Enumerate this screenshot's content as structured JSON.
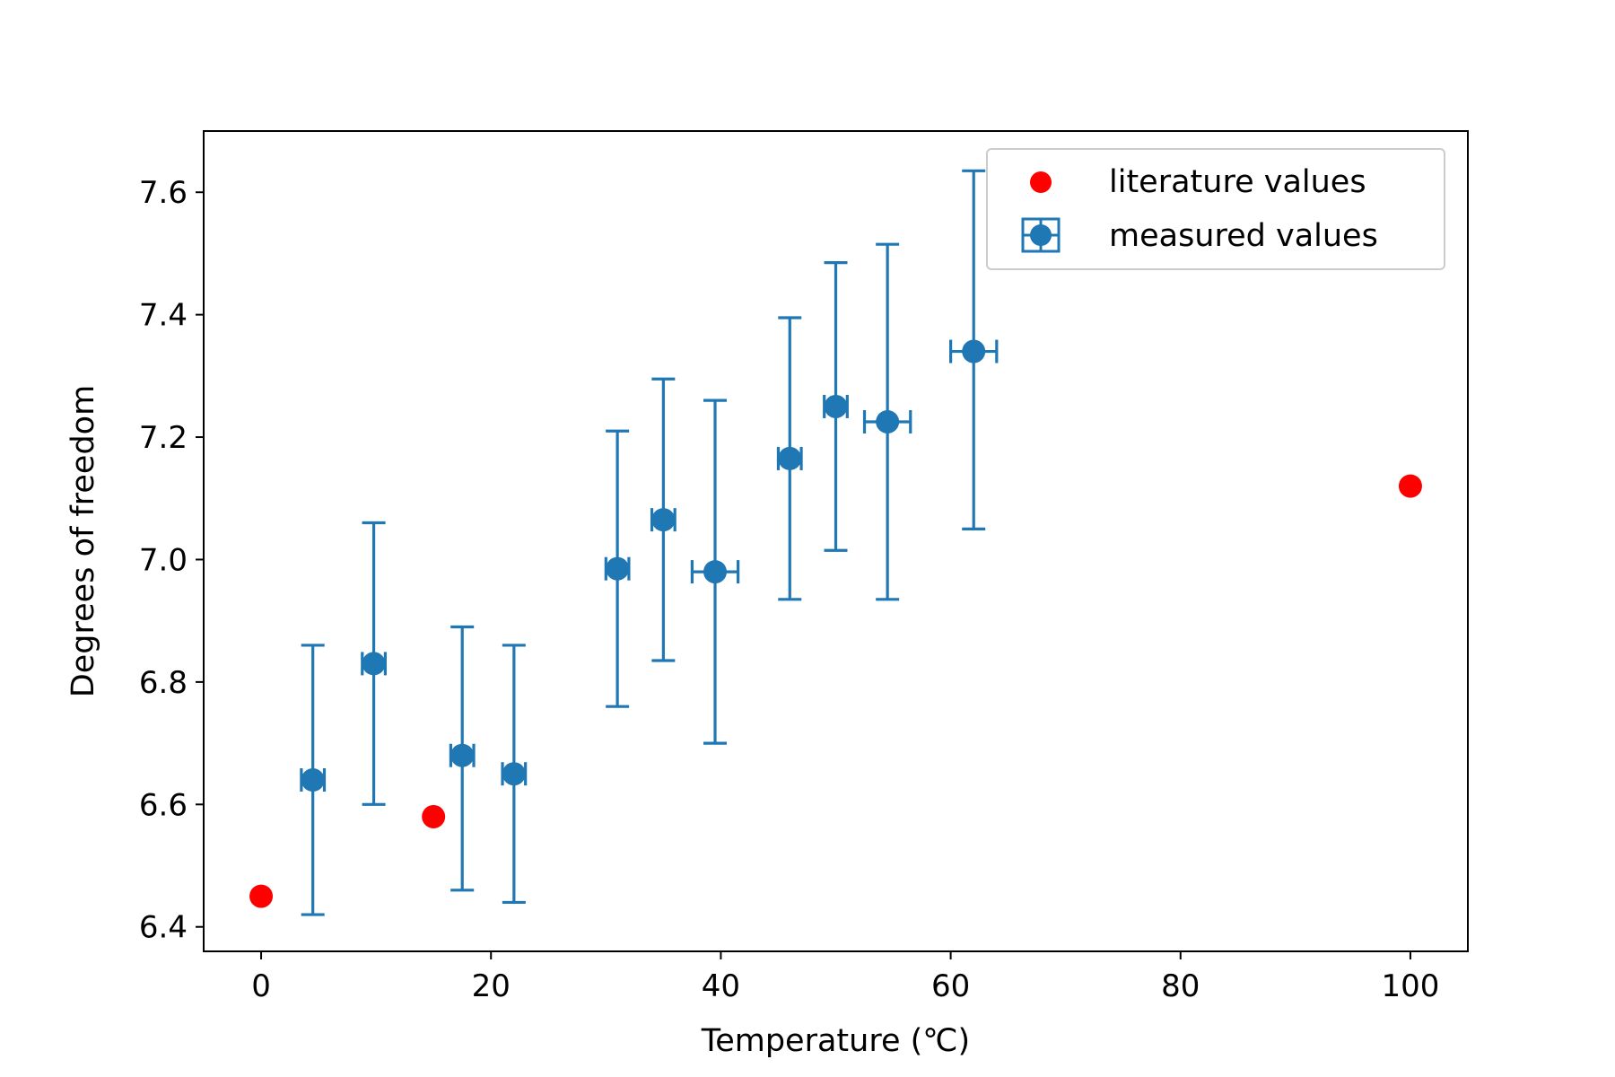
{
  "chart_data": {
    "type": "scatter",
    "title": "",
    "xlabel": "Temperature (℃)",
    "ylabel": "Degrees of freedom",
    "xlim": [
      -5,
      105
    ],
    "ylim": [
      6.36,
      7.7
    ],
    "xticks": [
      0,
      20,
      40,
      60,
      80,
      100
    ],
    "xtick_labels": [
      "0",
      "20",
      "40",
      "60",
      "80",
      "100"
    ],
    "yticks": [
      6.4,
      6.6,
      6.8,
      7.0,
      7.2,
      7.4,
      7.6
    ],
    "ytick_labels": [
      "6.4",
      "6.6",
      "6.8",
      "7.0",
      "7.2",
      "7.4",
      "7.6"
    ],
    "grid": false,
    "legend_position": "top-right",
    "series": [
      {
        "name": "literature values",
        "kind": "scatter",
        "color": "#ff0000",
        "points": [
          {
            "x": 0,
            "y": 6.45
          },
          {
            "x": 15,
            "y": 6.58
          },
          {
            "x": 100,
            "y": 7.12
          }
        ]
      },
      {
        "name": "measured values",
        "kind": "errorbar",
        "color": "#1f77b4",
        "points": [
          {
            "x": 4.5,
            "y": 6.64,
            "xerr": 1.0,
            "yerr_low": 0.22,
            "yerr_high": 0.22,
            "cap_low": 6.42,
            "cap_high": 6.86,
            "xcap_y": 0.03
          },
          {
            "x": 9.8,
            "y": 6.83,
            "xerr": 1.0,
            "yerr_low": 0.23,
            "yerr_high": 0.23
          },
          {
            "x": 17.5,
            "y": 6.68,
            "xerr": 1.0,
            "yerr_low": 0.22,
            "yerr_high": 0.21
          },
          {
            "x": 22.0,
            "y": 6.65,
            "xerr": 1.0,
            "yerr_low": 0.21,
            "yerr_high": 0.21
          },
          {
            "x": 31.0,
            "y": 6.985,
            "xerr": 1.0,
            "yerr_low": 0.225,
            "yerr_high": 0.225
          },
          {
            "x": 35.0,
            "y": 7.065,
            "xerr": 1.0,
            "yerr_low": 0.23,
            "yerr_high": 0.23
          },
          {
            "x": 39.5,
            "y": 6.98,
            "xerr": 2.0,
            "yerr_low": 0.28,
            "yerr_high": 0.28
          },
          {
            "x": 46.0,
            "y": 7.165,
            "xerr": 1.0,
            "yerr_low": 0.23,
            "yerr_high": 0.23
          },
          {
            "x": 50.0,
            "y": 7.25,
            "xerr": 1.0,
            "yerr_low": 0.235,
            "yerr_high": 0.235
          },
          {
            "x": 54.5,
            "y": 7.225,
            "xerr": 2.0,
            "yerr_low": 0.29,
            "yerr_high": 0.29
          },
          {
            "x": 62.0,
            "y": 7.34,
            "xerr": 2.0,
            "yerr_low": 0.29,
            "yerr_high": 0.295
          }
        ]
      }
    ]
  }
}
